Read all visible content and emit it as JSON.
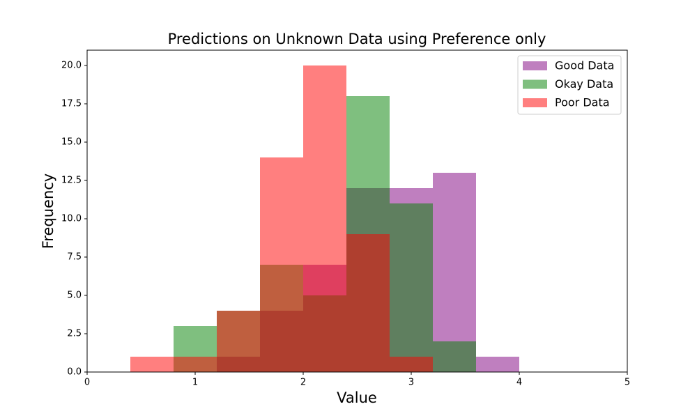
{
  "chart_data": {
    "type": "histogram",
    "title": "Predictions on Unknown Data using Preference only",
    "xlabel": "Value",
    "ylabel": "Frequency",
    "bins": [
      0.4,
      0.8,
      1.2,
      1.6,
      2.0,
      2.4,
      2.8,
      3.2,
      3.6,
      4.0
    ],
    "series": [
      {
        "name": "Good Data",
        "color": "#800080",
        "values": [
          0,
          0,
          1,
          4,
          7,
          12,
          12,
          13,
          1
        ]
      },
      {
        "name": "Okay Data",
        "color": "#008000",
        "values": [
          0,
          3,
          4,
          7,
          5,
          18,
          11,
          2,
          0
        ]
      },
      {
        "name": "Poor Data",
        "color": "#ff0000",
        "values": [
          1,
          1,
          4,
          14,
          20,
          9,
          1,
          0,
          0
        ]
      }
    ],
    "alpha": 0.5,
    "xlim": [
      0,
      5
    ],
    "xticks": [
      0,
      1,
      2,
      3,
      4,
      5
    ],
    "ylim": [
      0,
      21
    ],
    "yticks": [
      {
        "value": 0,
        "label": "0.0"
      },
      {
        "value": 2.5,
        "label": "2.5"
      },
      {
        "value": 5,
        "label": "5.0"
      },
      {
        "value": 7.5,
        "label": "7.5"
      },
      {
        "value": 10,
        "label": "10.0"
      },
      {
        "value": 12.5,
        "label": "12.5"
      },
      {
        "value": 15,
        "label": "15.0"
      },
      {
        "value": 17.5,
        "label": "17.5"
      },
      {
        "value": 20,
        "label": "20.0"
      }
    ],
    "legend": "upper right"
  }
}
